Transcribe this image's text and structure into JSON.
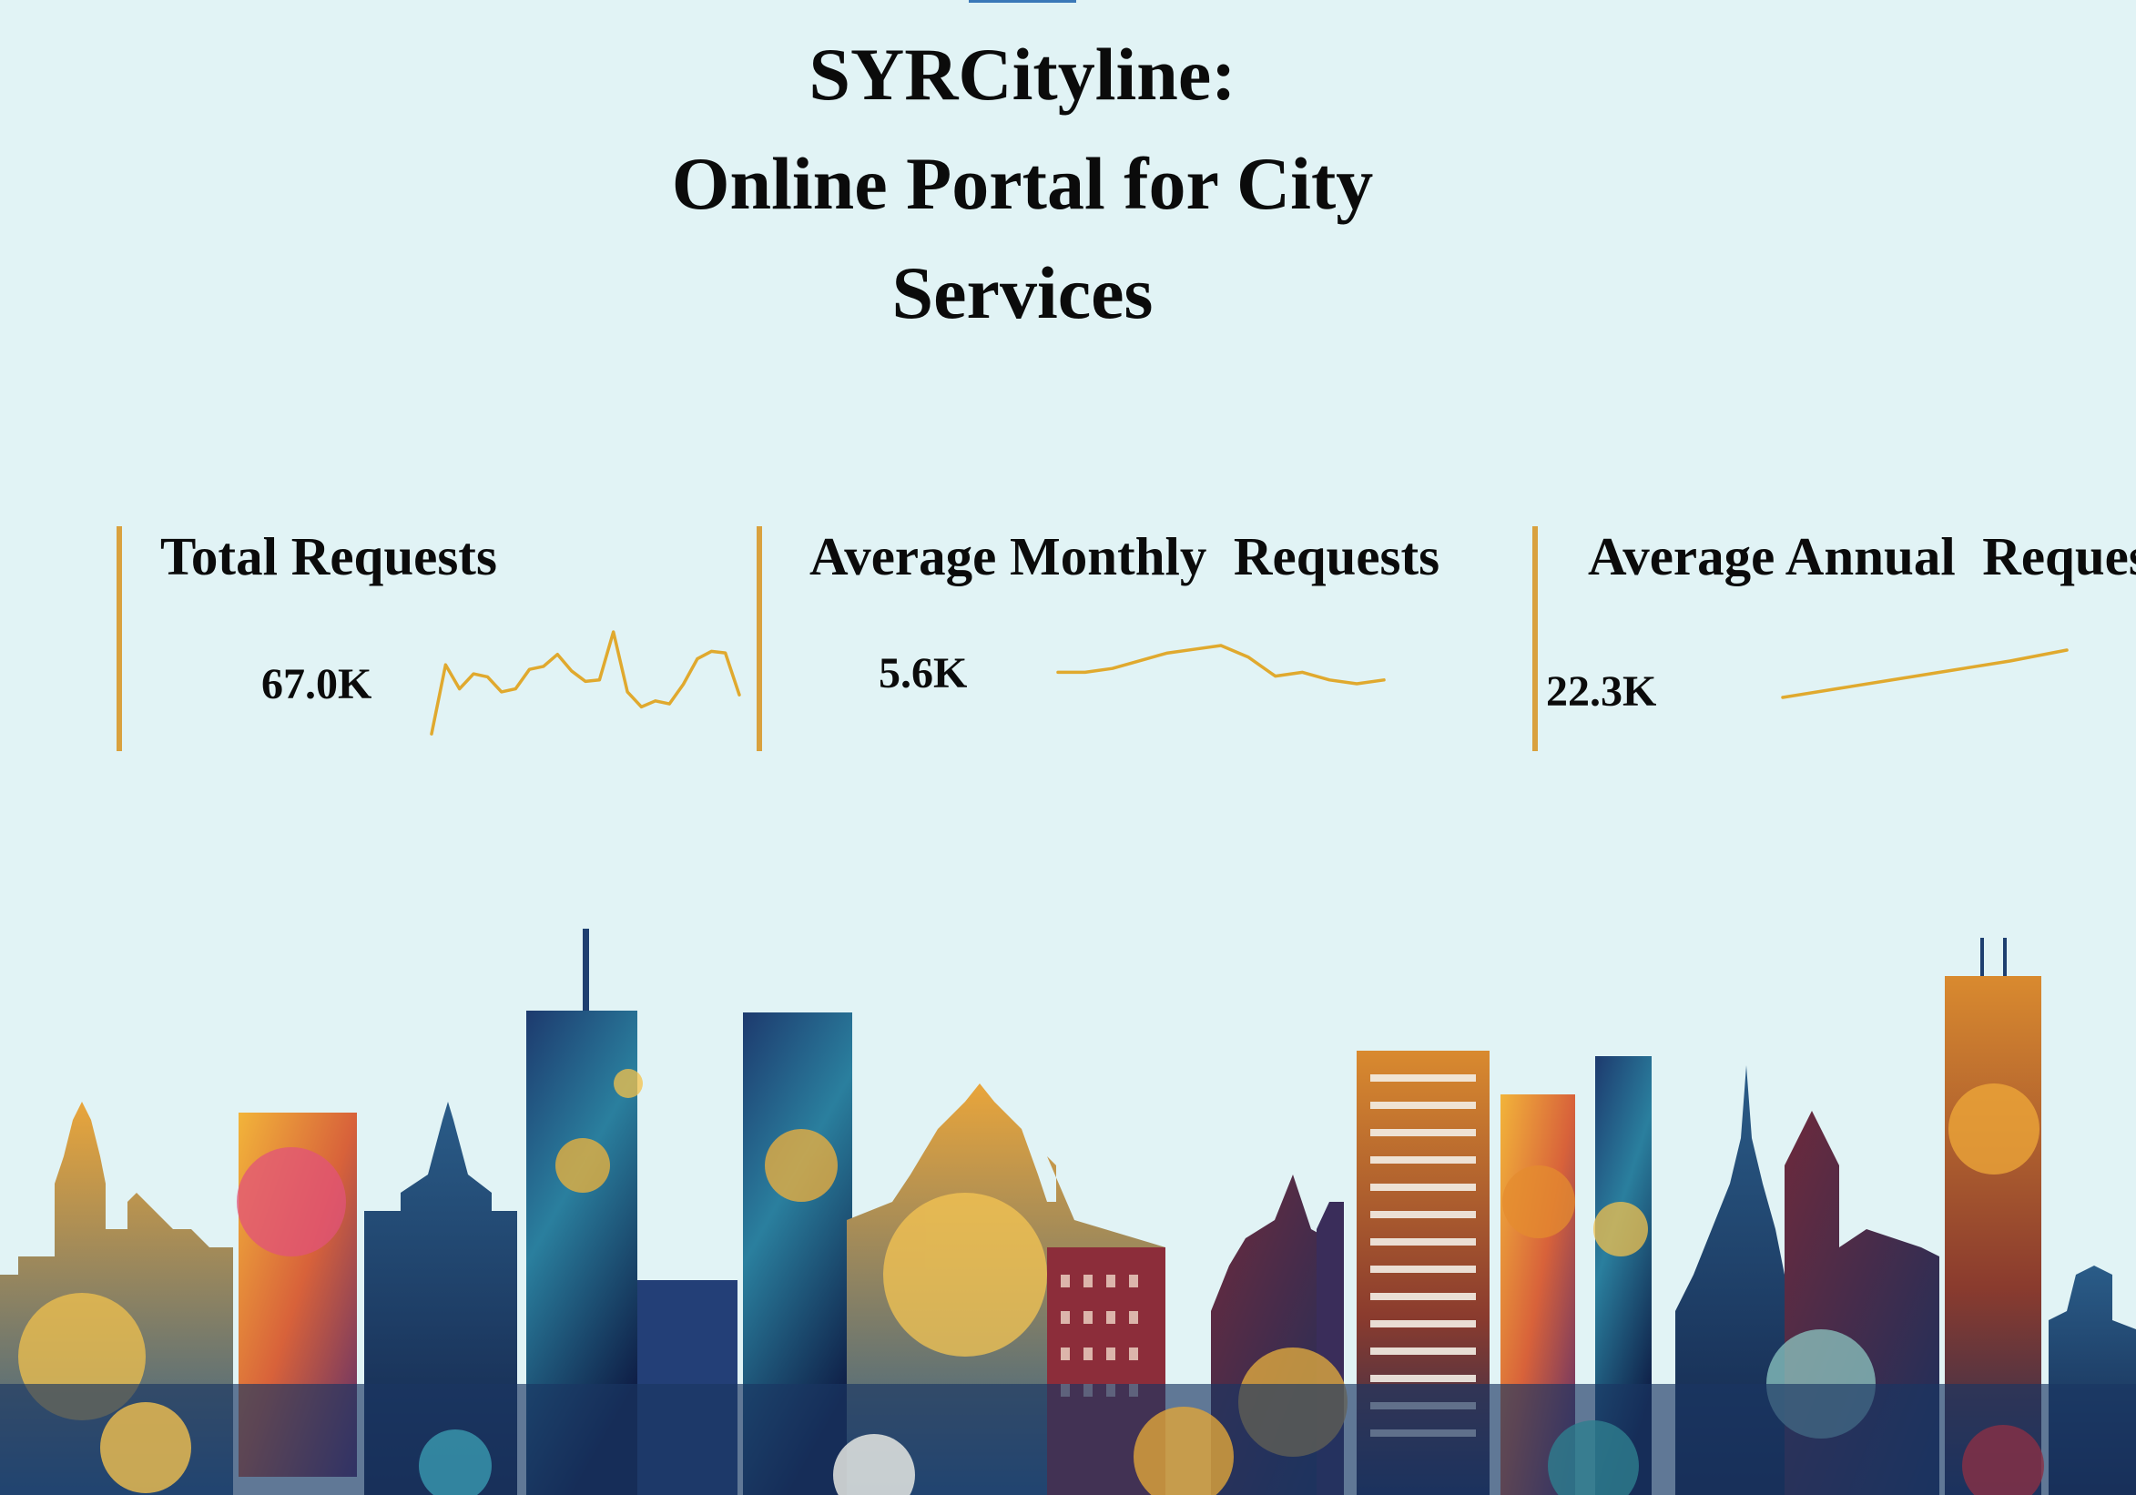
{
  "header": {
    "title_line1": "SYRCityline:",
    "title_line2": "Online Portal for City",
    "title_line3": "Services"
  },
  "kpis": [
    {
      "title": "Total Requests",
      "value": "67.0K",
      "trend": [
        2,
        48,
        32,
        42,
        40,
        30,
        32,
        45,
        47,
        55,
        44,
        37,
        38,
        70,
        30,
        20,
        24,
        22,
        35,
        52,
        57,
        56,
        28
      ]
    },
    {
      "title": "Average Monthly  Requests",
      "value": "5.6K",
      "trend": [
        58,
        58,
        59,
        61,
        63,
        64,
        65,
        62,
        57,
        58,
        56,
        55,
        56
      ]
    },
    {
      "title": "Average Annual  Requests",
      "value": "22.3K",
      "trend": [
        4,
        9,
        14,
        19,
        24,
        30
      ]
    }
  ],
  "colors": {
    "background": "#e1f3f5",
    "accent": "#d9a13e",
    "sparkline": "#e0a92e"
  },
  "image": {
    "name": "syracuse-watercolor-skyline"
  }
}
